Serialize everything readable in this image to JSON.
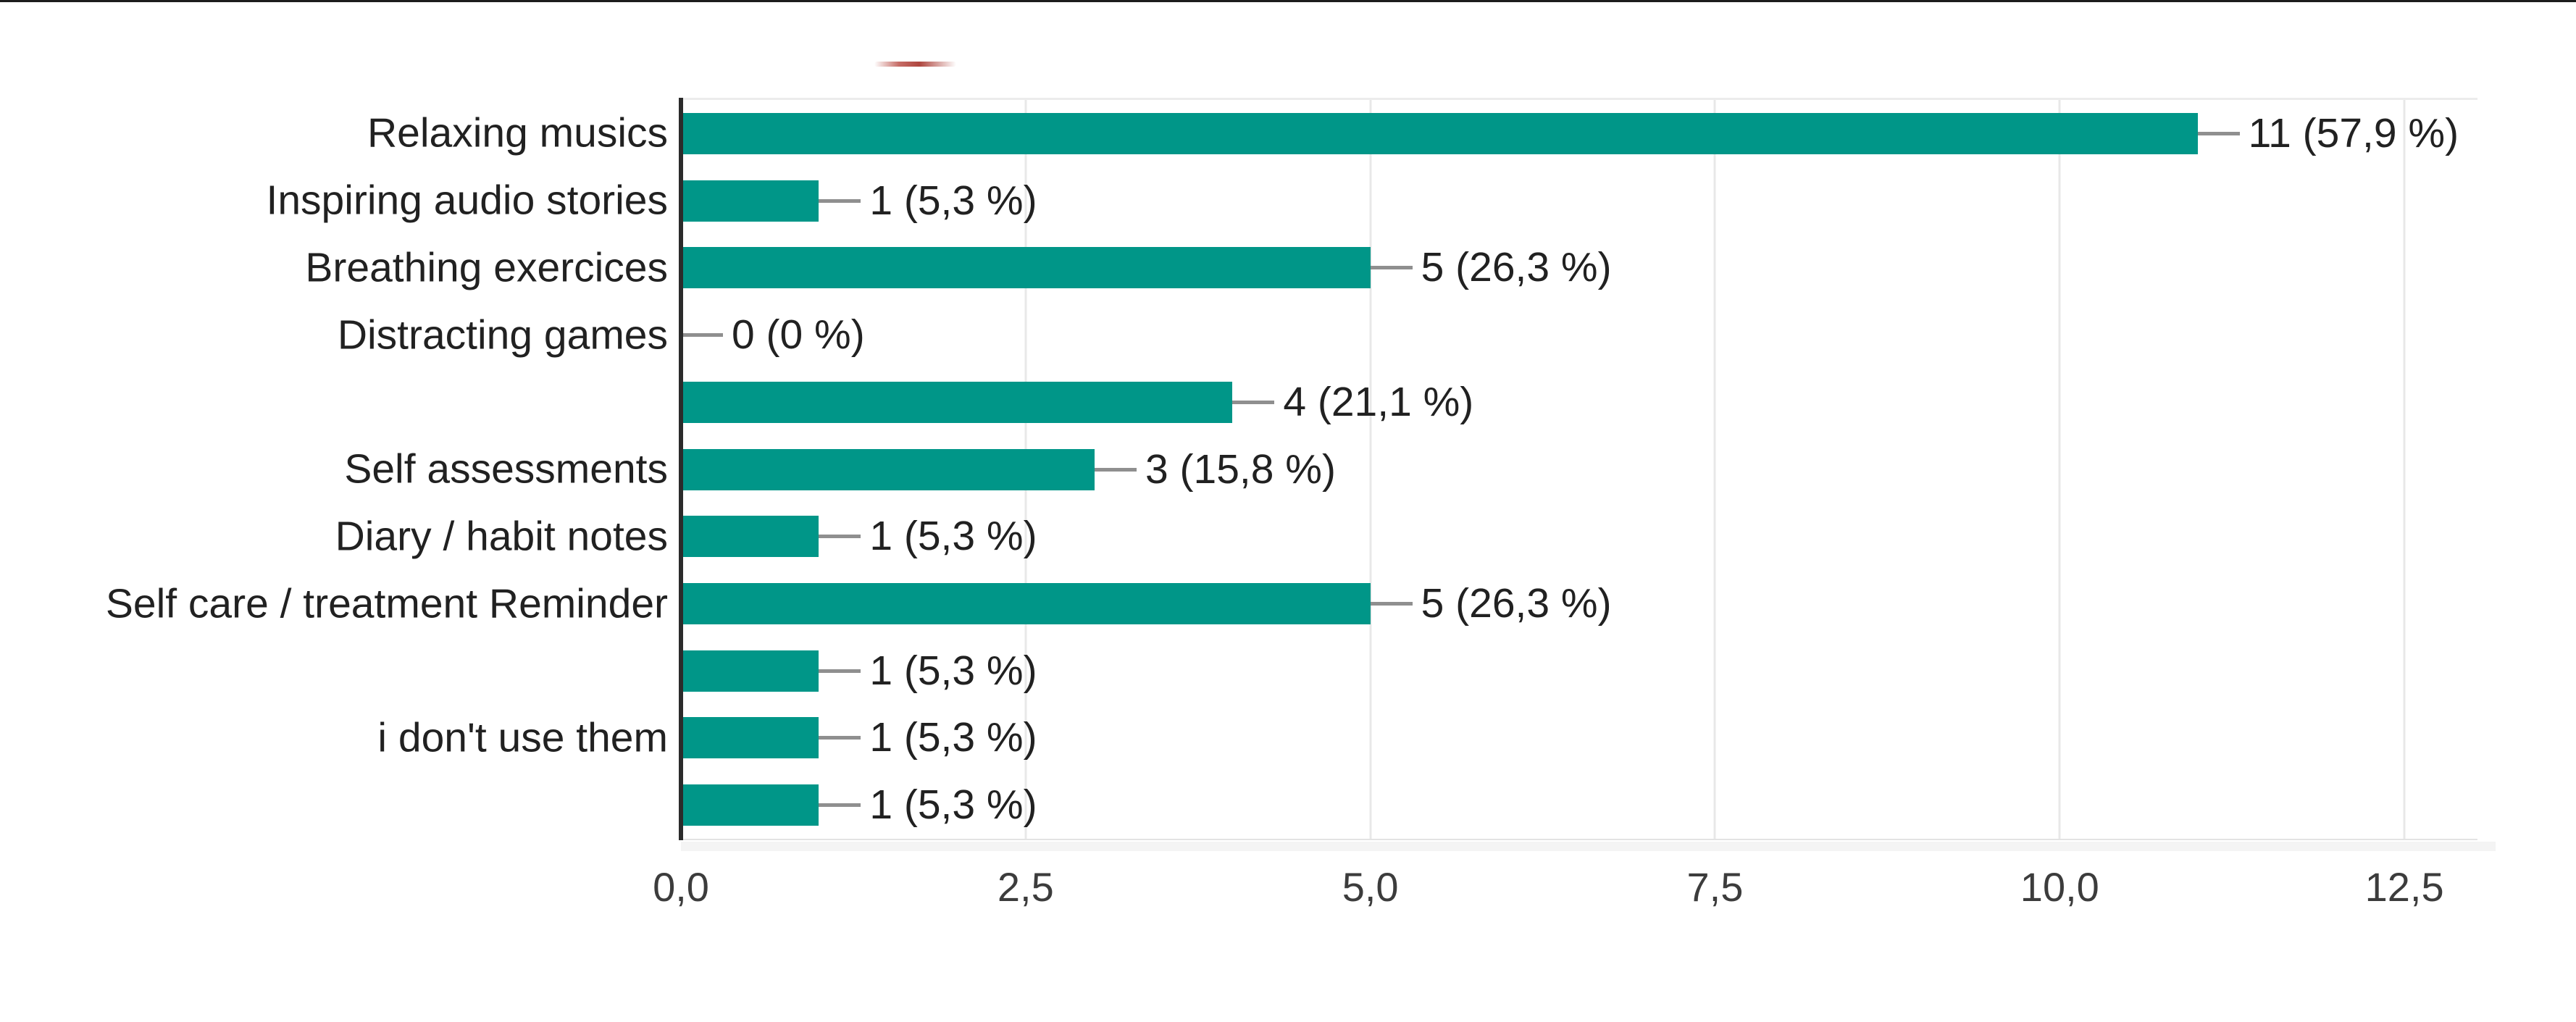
{
  "page": {
    "background": "#ffffff",
    "top_border_color": "#1c1c1c",
    "red_dash_color": "#bc534c"
  },
  "chart_data": {
    "type": "bar",
    "orientation": "horizontal",
    "title": "",
    "categories": [
      "Relaxing musics",
      "Inspiring audio stories",
      "Breathing exercices",
      "Distracting games",
      "",
      "Self assessments",
      "Diary / habit notes",
      "Self care / treatment Reminder",
      "",
      "i don't use them",
      ""
    ],
    "values": [
      11,
      1,
      5,
      0,
      4,
      3,
      1,
      5,
      1,
      1,
      1
    ],
    "value_labels": [
      "11 (57,9 %)",
      "1 (5,3 %)",
      "5 (26,3 %)",
      "0 (0 %)",
      "4 (21,1 %)",
      "3 (15,8 %)",
      "1 (5,3 %)",
      "5 (26,3 %)",
      "1 (5,3 %)",
      "1 (5,3 %)",
      "1 (5,3 %)"
    ],
    "x_ticks": [
      {
        "value": 0,
        "label": "0,0"
      },
      {
        "value": 2.5,
        "label": "2,5"
      },
      {
        "value": 5,
        "label": "5,0"
      },
      {
        "value": 7.5,
        "label": "7,5"
      },
      {
        "value": 10,
        "label": "10,0"
      },
      {
        "value": 12.5,
        "label": "12,5"
      }
    ],
    "x_axis_range": [
      0,
      13.03
    ],
    "grid": true,
    "legend": "none",
    "bar_color": "#009688",
    "connector_color": "#8f8f8f",
    "gridline_color": "#e8e8e8",
    "axis_line_color": "#2b2b2b",
    "label_text_color": "#212121",
    "tick_text_color": "#3c3c3c"
  }
}
